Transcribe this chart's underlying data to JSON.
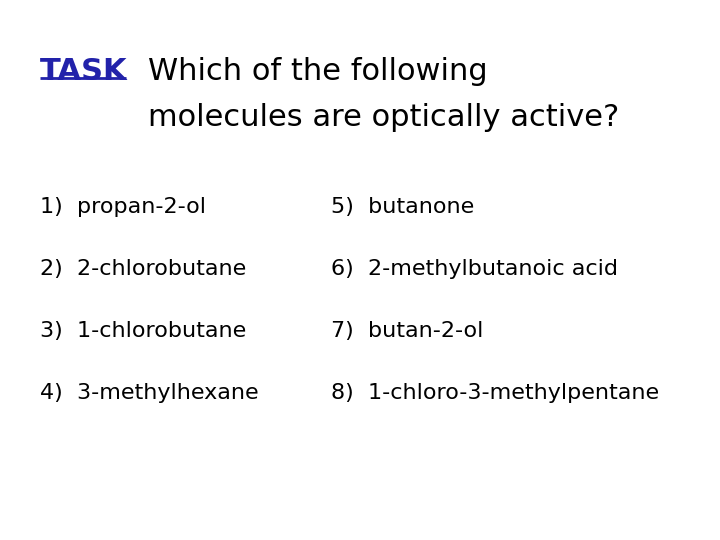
{
  "background_color": "#ffffff",
  "task_label": "TASK",
  "task_color": "#2222aa",
  "task_fontsize": 22,
  "title_line1": "Which of the following",
  "title_line2": "molecules are optically active?",
  "title_color": "#000000",
  "title_fontsize": 22,
  "items_left": [
    "1)  propan-2-ol",
    "2)  2-chlorobutane",
    "3)  1-chlorobutane",
    "4)  3-methylhexane"
  ],
  "items_right": [
    "5)  butanone",
    "6)  2-methylbutanoic acid",
    "7)  butan-2-ol",
    "8)  1-chloro-3-methylpentane"
  ],
  "items_color": "#000000",
  "items_fontsize": 16
}
